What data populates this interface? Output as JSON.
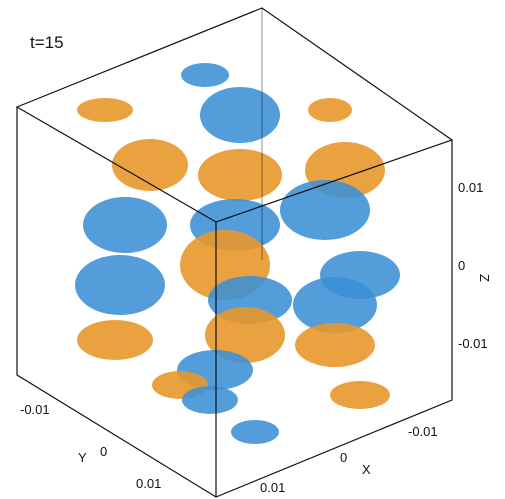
{
  "annotation": "t=15",
  "axes": {
    "x": {
      "label": "X",
      "ticks": [
        "-0.01",
        "0",
        "0.01"
      ]
    },
    "y": {
      "label": "Y",
      "ticks": [
        "-0.01",
        "0",
        "0.01"
      ]
    },
    "z": {
      "label": "Z",
      "ticks": [
        "0.01",
        "0",
        "-0.01"
      ]
    }
  }
}
